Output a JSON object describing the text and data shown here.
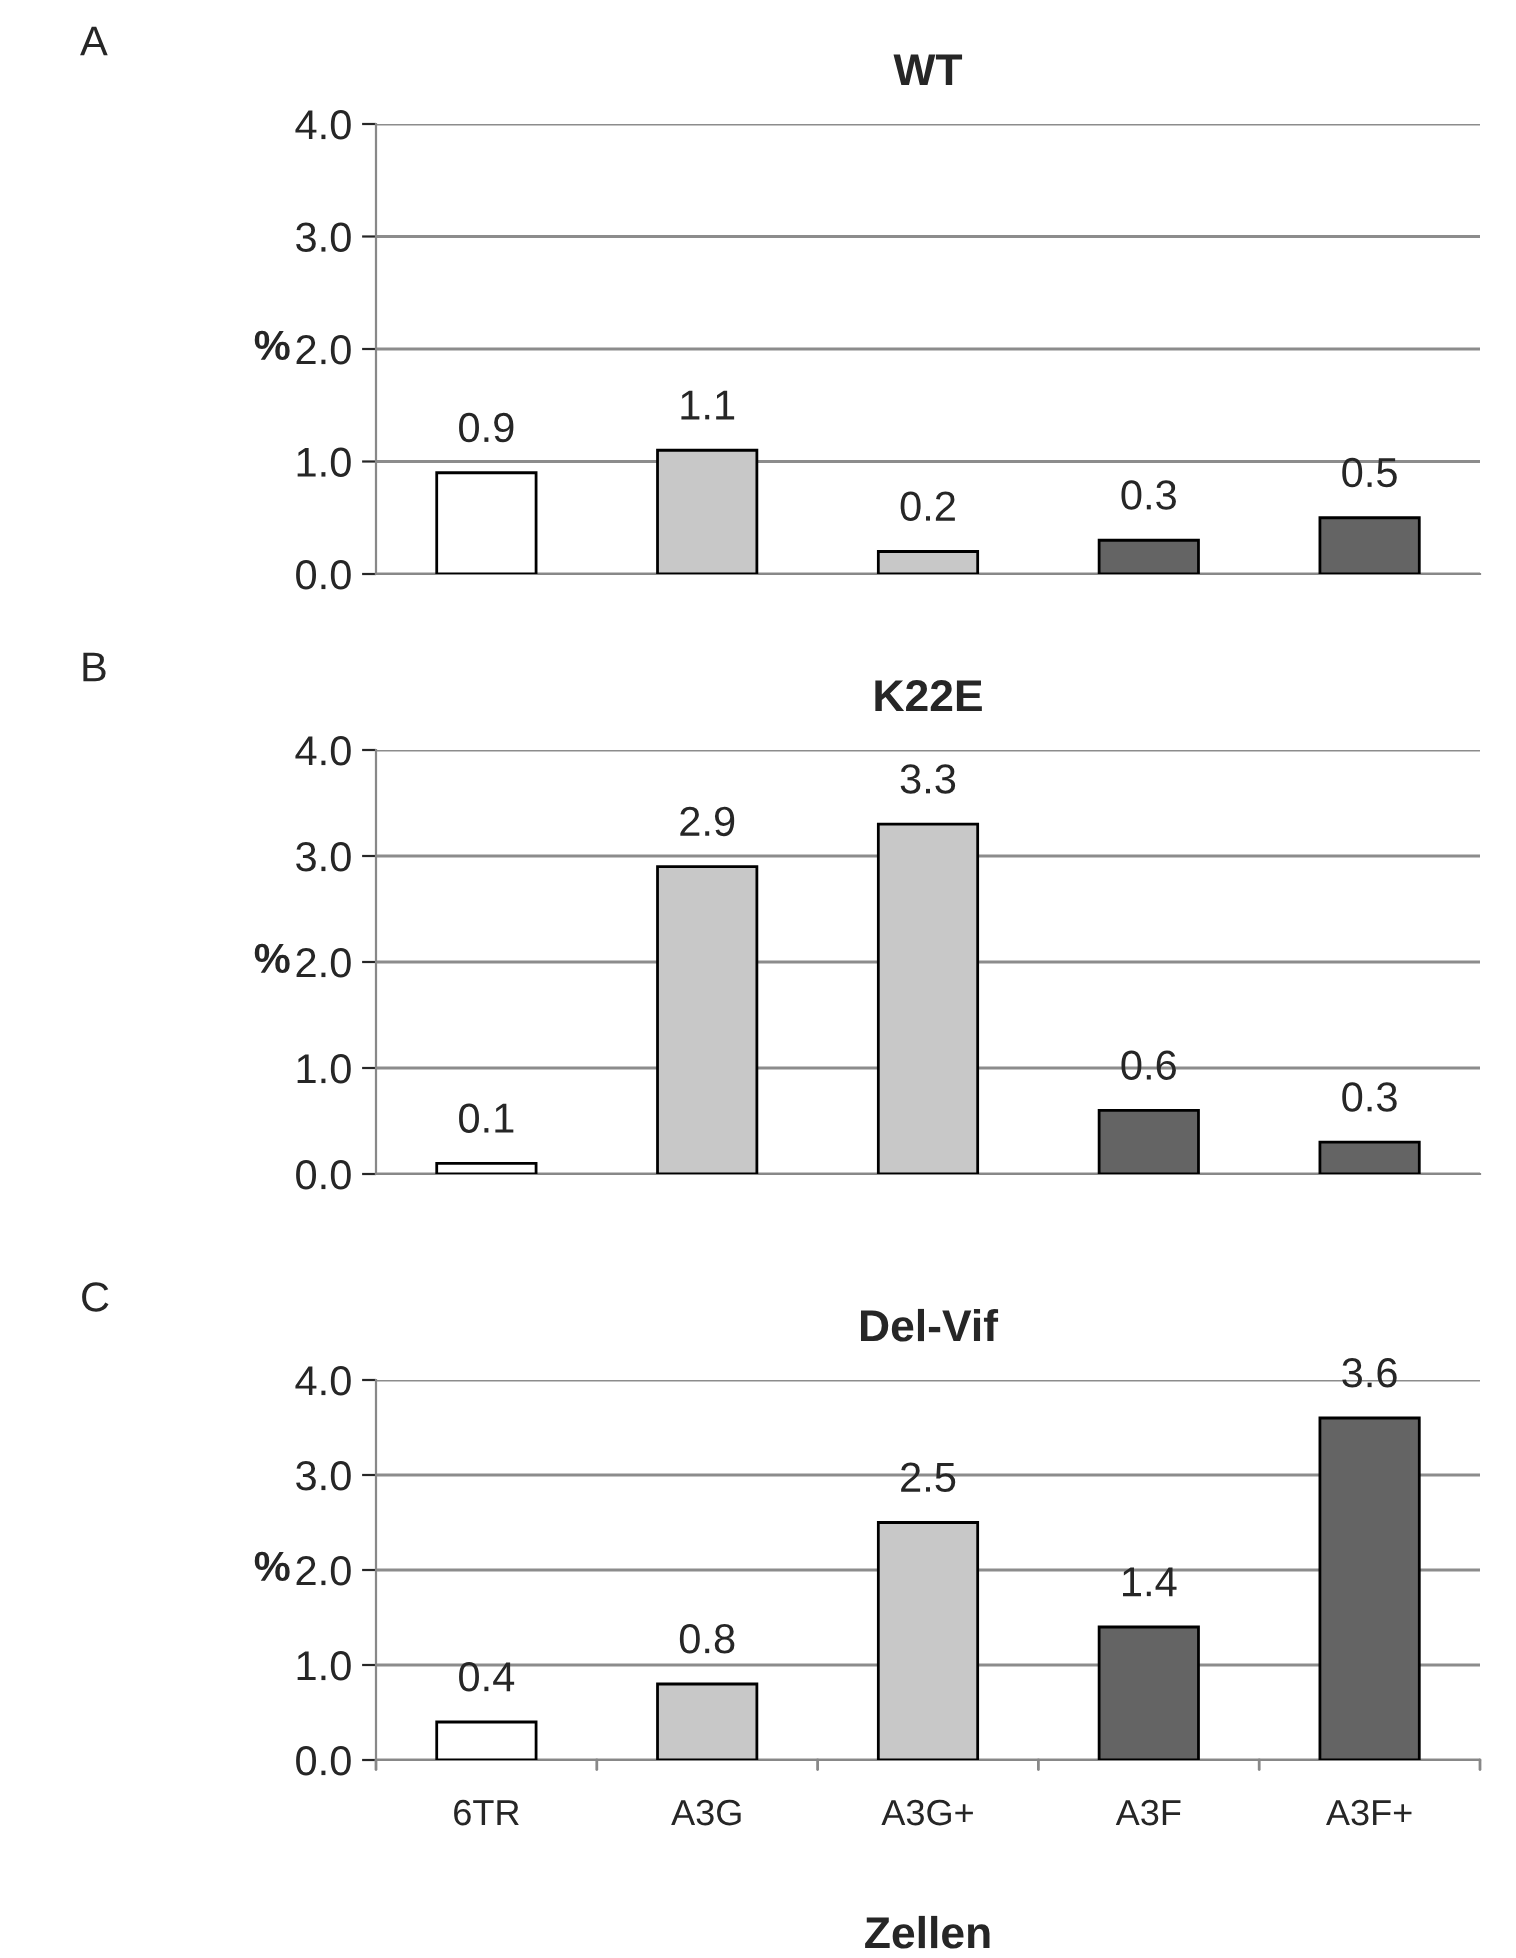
{
  "chart_data": [
    {
      "type": "bar",
      "title": "WT",
      "ylabel": "%",
      "annotations": [
        "A"
      ],
      "categories": [
        null,
        null,
        null,
        null,
        null
      ],
      "values": [
        0.9,
        1.1,
        0.2,
        0.3,
        0.5
      ],
      "colors": [
        "#ffffff",
        "#c8c8c8",
        "#c8c8c8",
        "#646464",
        "#646464"
      ],
      "ylim": [
        0,
        4
      ],
      "yticks": [
        {
          "value": 0,
          "label": "0.0"
        },
        {
          "value": 1,
          "label": "1.0"
        },
        {
          "value": 2,
          "label": "2.0"
        },
        {
          "value": 3,
          "label": "3.0"
        },
        {
          "value": 4,
          "label": "4.0"
        }
      ],
      "grid": "y",
      "data_labels": true,
      "tick_labels": "y"
    },
    {
      "type": "bar",
      "title": "K22E",
      "ylabel": "%",
      "annotations": [
        "B"
      ],
      "categories": [
        null,
        null,
        null,
        null,
        null
      ],
      "values": [
        0.1,
        2.9,
        3.3,
        0.6,
        0.3
      ],
      "colors": [
        "#ffffff",
        "#c8c8c8",
        "#c8c8c8",
        "#646464",
        "#646464"
      ],
      "ylim": [
        0,
        4
      ],
      "yticks": [
        {
          "value": 0,
          "label": "0.0"
        },
        {
          "value": 1,
          "label": "1.0"
        },
        {
          "value": 2,
          "label": "2.0"
        },
        {
          "value": 3,
          "label": "3.0"
        },
        {
          "value": 4,
          "label": "4.0"
        }
      ],
      "grid": "y",
      "data_labels": true,
      "tick_labels": "y"
    },
    {
      "type": "bar",
      "title": "Del-Vif",
      "ylabel": "%",
      "xlabel": "Zellen",
      "annotations": [
        "C"
      ],
      "categories": [
        "6TR",
        "A3G",
        "A3G+",
        "A3F",
        "A3F+"
      ],
      "values": [
        0.4,
        0.8,
        2.5,
        1.4,
        3.6
      ],
      "colors": [
        "#ffffff",
        "#c8c8c8",
        "#c8c8c8",
        "#646464",
        "#646464"
      ],
      "ylim": [
        0,
        4
      ],
      "yticks": [
        {
          "value": 0,
          "label": "0.0"
        },
        {
          "value": 1,
          "label": "1.0"
        },
        {
          "value": 2,
          "label": "2.0"
        },
        {
          "value": 3,
          "label": "3.0"
        },
        {
          "value": 4,
          "label": "4.0"
        }
      ],
      "grid": "y",
      "data_labels": true
    }
  ]
}
